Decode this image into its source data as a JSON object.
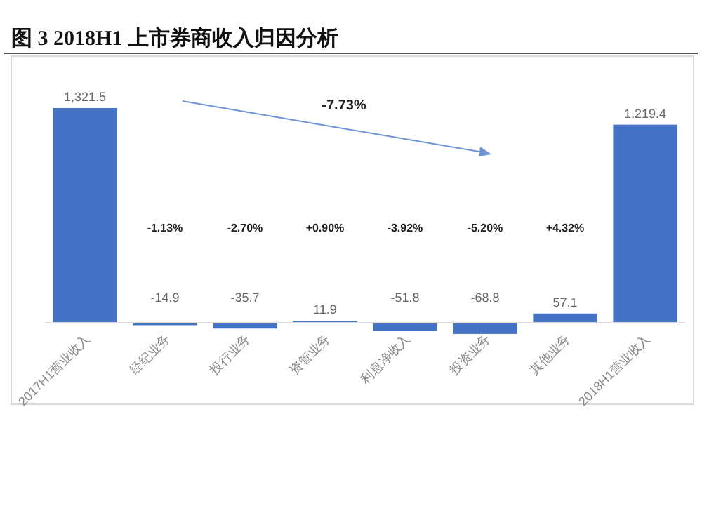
{
  "chart_data": {
    "type": "bar",
    "title": "图 3 2018H1 上市券商收入归因分析",
    "categories": [
      "2017H1营业收入",
      "经纪业务",
      "投行业务",
      "资管业务",
      "利息净收入",
      "投资业务",
      "其他业务",
      "2018H1营业收入"
    ],
    "values": [
      1321.5,
      -14.9,
      -35.7,
      11.9,
      -51.8,
      -68.8,
      57.1,
      1219.4
    ],
    "value_labels": [
      "1,321.5",
      "-14.9",
      "-35.7",
      "11.9",
      "-51.8",
      "-68.8",
      "57.1",
      "1,219.4"
    ],
    "color": "#4472c4",
    "annotations": [
      "-7.73%",
      "-1.13%",
      "-2.70%",
      "+0.90%",
      "-3.92%",
      "-5.20%",
      "+4.32%"
    ]
  }
}
